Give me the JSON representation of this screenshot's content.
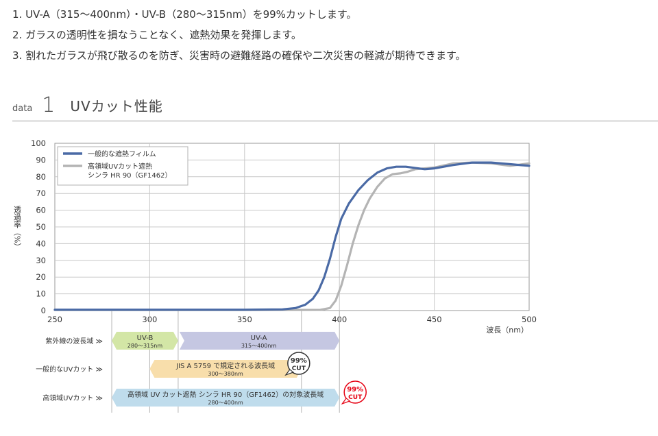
{
  "intro": [
    "1. UV-A（315～400nm）・UV-B（280～315nm）を99%カットします。",
    "2. ガラスの透明性を損なうことなく、遮熱効果を発揮します。",
    "3. 割れたガラスが飛び散るのを防ぎ、災害時の避難経路の確保や二次災害の軽減が期待できます。"
  ],
  "section": {
    "prefix": "data",
    "number": "1",
    "title": "UVカット性能"
  },
  "chart_data": {
    "type": "line",
    "xlabel": "波長（nm）",
    "ylabel": "透過率（%）",
    "xlim": [
      250,
      500
    ],
    "ylim": [
      0,
      100
    ],
    "xticks": [
      250,
      300,
      350,
      400,
      450,
      500
    ],
    "yticks": [
      0,
      10,
      20,
      30,
      40,
      50,
      60,
      70,
      80,
      90,
      100
    ],
    "grid": true,
    "legend_position": "top-left",
    "series": [
      {
        "name": "一般的な遮熱フィルム",
        "color": "#4a6aa5",
        "points": [
          [
            250,
            0.5
          ],
          [
            300,
            0.5
          ],
          [
            350,
            0.5
          ],
          [
            370,
            0.7
          ],
          [
            377,
            1.5
          ],
          [
            382,
            3.5
          ],
          [
            386,
            7
          ],
          [
            389,
            12
          ],
          [
            392,
            20
          ],
          [
            395,
            31
          ],
          [
            398,
            44
          ],
          [
            401,
            55
          ],
          [
            405,
            64
          ],
          [
            410,
            72
          ],
          [
            415,
            78
          ],
          [
            420,
            82.5
          ],
          [
            425,
            85
          ],
          [
            430,
            86
          ],
          [
            435,
            86
          ],
          [
            440,
            85.2
          ],
          [
            445,
            84.5
          ],
          [
            450,
            85
          ],
          [
            460,
            87
          ],
          [
            470,
            88.5
          ],
          [
            480,
            88.5
          ],
          [
            490,
            87.5
          ],
          [
            500,
            86.5
          ]
        ]
      },
      {
        "name": "高領域UVカット遮熱 シンラ HR 90（GF1462）",
        "color": "#b4b4b4",
        "points": [
          [
            250,
            0.3
          ],
          [
            300,
            0.3
          ],
          [
            350,
            0.3
          ],
          [
            390,
            0.4
          ],
          [
            395,
            1.5
          ],
          [
            398,
            6
          ],
          [
            401,
            15
          ],
          [
            404,
            27
          ],
          [
            407,
            40
          ],
          [
            410,
            51
          ],
          [
            413,
            60
          ],
          [
            416,
            67
          ],
          [
            420,
            74
          ],
          [
            424,
            79
          ],
          [
            428,
            81.5
          ],
          [
            432,
            82
          ],
          [
            436,
            83
          ],
          [
            440,
            84.5
          ],
          [
            450,
            85.5
          ],
          [
            460,
            88
          ],
          [
            470,
            88.5
          ],
          [
            480,
            88
          ],
          [
            490,
            86.5
          ],
          [
            500,
            88
          ]
        ]
      }
    ],
    "legend": [
      {
        "label_lines": [
          "一般的な遮熱フィルム"
        ],
        "color": "#4a6aa5"
      },
      {
        "label_lines": [
          "高領域UVカット遮熱",
          "シンラ HR 90（GF1462）"
        ],
        "color": "#b4b4b4"
      }
    ],
    "bands": [
      {
        "row_label": "紫外線の波長域 ≫",
        "segments": [
          {
            "label": "UV-B",
            "range_label": "280～315nm",
            "from": 280,
            "to": 315,
            "color": "#d3e6a6"
          },
          {
            "label": "UV-A",
            "range_label": "315～400nm",
            "from": 315,
            "to": 400,
            "color": "#c5c7e2"
          }
        ]
      },
      {
        "row_label": "一般的なUVカット ≫",
        "segments": [
          {
            "label": "JIS A 5759 で規定される波長域",
            "range_label": "300～380nm",
            "from": 300,
            "to": 380,
            "color": "#f8deab"
          }
        ],
        "badge": {
          "top": "99%",
          "bottom": "CUT",
          "color": "#333333",
          "text_color": "#333333"
        }
      },
      {
        "row_label": "高領域UVカット ≫",
        "segments": [
          {
            "label": "高領域 UV カット遮熱 シンラ HR 90（GF1462）の対象波長域",
            "range_label": "280～400nm",
            "from": 280,
            "to": 400,
            "color": "#bfdcec"
          }
        ],
        "badge": {
          "top": "99%",
          "bottom": "CUT",
          "color": "#e60012",
          "text_color": "#e60012"
        }
      }
    ]
  }
}
